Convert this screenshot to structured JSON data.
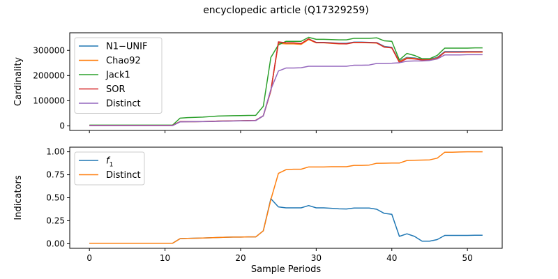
{
  "title": "encyclopedic article (Q17329259)",
  "chart_data": [
    {
      "type": "line",
      "title": "",
      "ylabel": "Cardinality",
      "xlabel": "",
      "xlim": [
        -2.6,
        54.6
      ],
      "ylim": [
        -18000,
        370000
      ],
      "xticks": [
        0,
        10,
        20,
        30,
        40,
        50
      ],
      "show_xtick_labels": false,
      "yticks": [
        0,
        100000,
        200000,
        300000
      ],
      "ytick_labels": [
        "0",
        "100000",
        "200000",
        "300000"
      ],
      "grid": false,
      "legend": "upper-left",
      "x": [
        0,
        1,
        2,
        3,
        4,
        5,
        6,
        7,
        8,
        9,
        10,
        11,
        12,
        13,
        14,
        15,
        16,
        17,
        18,
        19,
        20,
        21,
        22,
        23,
        24,
        25,
        26,
        27,
        28,
        29,
        30,
        31,
        32,
        33,
        34,
        35,
        36,
        37,
        38,
        39,
        40,
        41,
        42,
        43,
        44,
        45,
        46,
        47,
        48,
        49,
        50,
        51,
        52
      ],
      "series": [
        {
          "name": "N1−UNIF",
          "color": "#1f77b4",
          "values": [
            2000,
            2000,
            2000,
            2000,
            2000,
            2000,
            2000,
            2000,
            2000,
            2000,
            2000,
            2000,
            17000,
            17000,
            17000,
            17500,
            18000,
            19000,
            19500,
            20000,
            20500,
            21000,
            22000,
            40000,
            140000,
            330000,
            328000,
            328000,
            326000,
            345000,
            332000,
            332000,
            330000,
            328000,
            328000,
            333000,
            333000,
            332000,
            331000,
            316000,
            312000,
            258000,
            272000,
            270000,
            265000,
            265000,
            272000,
            295000,
            295000,
            295000,
            295000,
            295000,
            295000
          ]
        },
        {
          "name": "Chao92",
          "color": "#ff7f0e",
          "values": [
            2000,
            2000,
            2000,
            2000,
            2000,
            2000,
            2000,
            2000,
            2000,
            2000,
            2000,
            2000,
            17000,
            17000,
            17000,
            17500,
            18000,
            19000,
            19500,
            20000,
            20500,
            21000,
            22000,
            40000,
            140000,
            328000,
            326000,
            326000,
            324000,
            343000,
            330000,
            330000,
            328000,
            326000,
            326000,
            331000,
            331000,
            330000,
            329000,
            314000,
            310000,
            256000,
            270000,
            268000,
            263000,
            263000,
            270000,
            293000,
            293000,
            293000,
            293000,
            293000,
            293000
          ]
        },
        {
          "name": "Jack1",
          "color": "#2ca02c",
          "values": [
            3000,
            3000,
            3000,
            3000,
            3000,
            3000,
            3000,
            3000,
            3000,
            3000,
            3000,
            3000,
            31000,
            33000,
            34000,
            35000,
            37000,
            39000,
            40000,
            40500,
            41000,
            41500,
            42000,
            78000,
            272000,
            322000,
            336000,
            336000,
            336000,
            352000,
            344000,
            344000,
            343000,
            342000,
            342000,
            348000,
            348000,
            348000,
            350000,
            338000,
            336000,
            262000,
            288000,
            280000,
            267000,
            267000,
            280000,
            309000,
            309000,
            309000,
            309000,
            310000,
            310000
          ]
        },
        {
          "name": "SOR",
          "color": "#d62728",
          "values": [
            2000,
            2000,
            2000,
            2000,
            2000,
            2000,
            2000,
            2000,
            2000,
            2000,
            2000,
            2000,
            17000,
            17000,
            17000,
            17500,
            18000,
            19000,
            19500,
            20000,
            20500,
            21000,
            22000,
            40000,
            140000,
            334000,
            330000,
            330000,
            327000,
            346000,
            331000,
            331000,
            329000,
            327000,
            326000,
            332000,
            332000,
            331000,
            330000,
            313000,
            310000,
            252000,
            268000,
            266000,
            262000,
            262000,
            268000,
            293000,
            293000,
            293000,
            294000,
            294000,
            294000
          ]
        },
        {
          "name": "Distinct",
          "color": "#9467bd",
          "values": [
            1000,
            1000,
            1000,
            1000,
            1000,
            1000,
            1000,
            1000,
            1000,
            1000,
            1000,
            1000,
            16000,
            16500,
            17000,
            17000,
            17500,
            18000,
            19000,
            19500,
            20000,
            20500,
            21000,
            40000,
            145000,
            218000,
            230000,
            230000,
            231000,
            237000,
            237000,
            237000,
            237000,
            237000,
            237000,
            241000,
            241000,
            242000,
            248000,
            248000,
            249000,
            251000,
            257000,
            258000,
            258000,
            260000,
            266000,
            282000,
            282000,
            282000,
            283000,
            283000,
            283000
          ]
        }
      ]
    },
    {
      "type": "line",
      "title": "",
      "ylabel": "Indicators",
      "xlabel": "Sample Periods",
      "xlim": [
        -2.6,
        54.6
      ],
      "ylim": [
        -0.05,
        1.05
      ],
      "xticks": [
        0,
        10,
        20,
        30,
        40,
        50
      ],
      "xtick_labels": [
        "0",
        "10",
        "20",
        "30",
        "40",
        "50"
      ],
      "yticks": [
        0,
        0.25,
        0.5,
        0.75,
        1
      ],
      "ytick_labels": [
        "0.00",
        "0.25",
        "0.50",
        "0.75",
        "1.00"
      ],
      "grid": false,
      "legend": "upper-left",
      "x": [
        0,
        1,
        2,
        3,
        4,
        5,
        6,
        7,
        8,
        9,
        10,
        11,
        12,
        13,
        14,
        15,
        16,
        17,
        18,
        19,
        20,
        21,
        22,
        23,
        24,
        25,
        26,
        27,
        28,
        29,
        30,
        31,
        32,
        33,
        34,
        35,
        36,
        37,
        38,
        39,
        40,
        41,
        42,
        43,
        44,
        45,
        46,
        47,
        48,
        49,
        50,
        51,
        52
      ],
      "series": [
        {
          "name": "f1",
          "name_main": "f",
          "name_sub": "1",
          "color": "#1f77b4",
          "values": [
            0.005,
            0.005,
            0.005,
            0.005,
            0.005,
            0.005,
            0.005,
            0.005,
            0.005,
            0.005,
            0.005,
            0.005,
            0.055,
            0.058,
            0.06,
            0.062,
            0.065,
            0.068,
            0.07,
            0.072,
            0.072,
            0.074,
            0.074,
            0.14,
            0.49,
            0.4,
            0.39,
            0.39,
            0.39,
            0.415,
            0.39,
            0.39,
            0.385,
            0.38,
            0.378,
            0.388,
            0.388,
            0.388,
            0.375,
            0.33,
            0.32,
            0.08,
            0.108,
            0.08,
            0.028,
            0.028,
            0.045,
            0.09,
            0.09,
            0.09,
            0.09,
            0.092,
            0.092
          ]
        },
        {
          "name": "Distinct",
          "color": "#ff7f0e",
          "values": [
            0.005,
            0.005,
            0.005,
            0.005,
            0.005,
            0.005,
            0.005,
            0.005,
            0.005,
            0.005,
            0.005,
            0.005,
            0.055,
            0.058,
            0.06,
            0.062,
            0.065,
            0.068,
            0.07,
            0.072,
            0.072,
            0.074,
            0.074,
            0.14,
            0.48,
            0.765,
            0.805,
            0.81,
            0.81,
            0.835,
            0.835,
            0.835,
            0.838,
            0.838,
            0.838,
            0.852,
            0.852,
            0.855,
            0.875,
            0.876,
            0.877,
            0.877,
            0.905,
            0.908,
            0.91,
            0.912,
            0.93,
            0.995,
            0.995,
            0.998,
            1.0,
            1.0,
            1.0
          ]
        }
      ]
    }
  ]
}
